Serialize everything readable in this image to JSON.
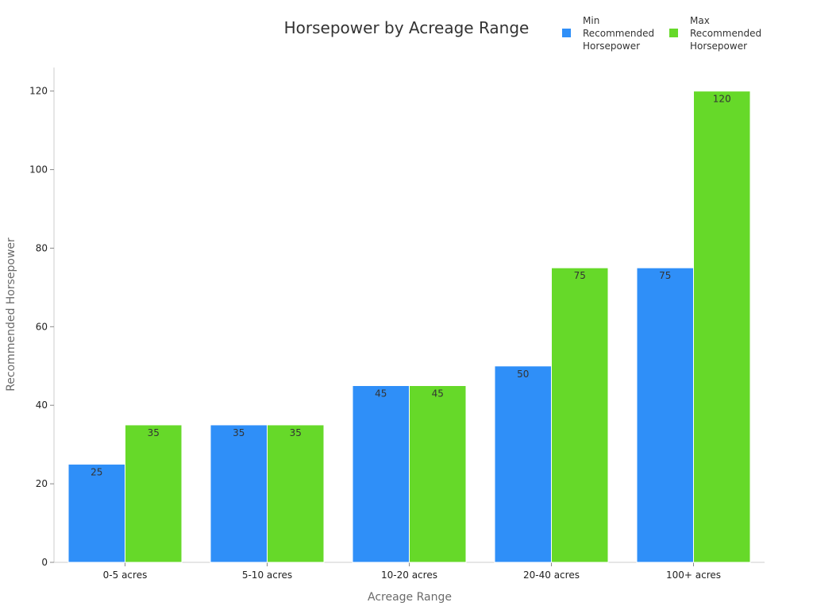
{
  "chart_data": {
    "type": "bar",
    "title": "Horsepower by Acreage Range",
    "xlabel": "Acreage Range",
    "ylabel": "Recommended Horsepower",
    "categories": [
      "0-5 acres",
      "5-10 acres",
      "10-20 acres",
      "20-40 acres",
      "100+ acres"
    ],
    "series": [
      {
        "name": "Min Recommended Horsepower",
        "legend_lines": [
          "Min",
          "Recommended",
          "Horsepower"
        ],
        "color": "#2f8ff8",
        "values": [
          25,
          35,
          45,
          50,
          75
        ]
      },
      {
        "name": "Max Recommended Horsepower",
        "legend_lines": [
          "Max",
          "Recommended",
          "Horsepower"
        ],
        "color": "#66d929",
        "values": [
          35,
          35,
          45,
          75,
          120
        ]
      }
    ],
    "ylim": [
      0,
      126
    ],
    "yticks": [
      0,
      20,
      40,
      60,
      80,
      100,
      120
    ],
    "grid": false,
    "legend_position": "top-right",
    "data_labels": true
  }
}
